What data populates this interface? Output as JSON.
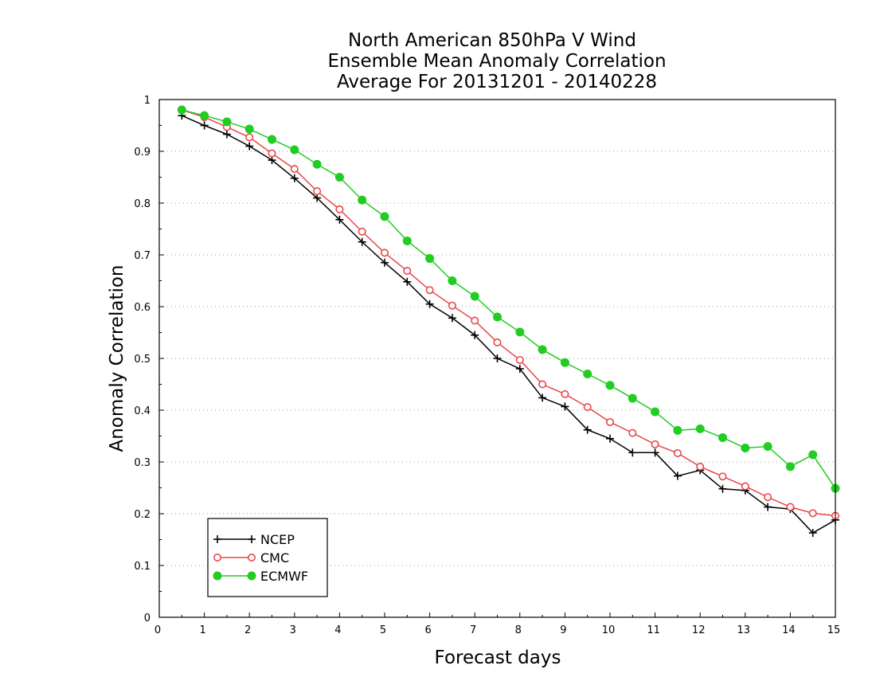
{
  "chart_data": {
    "type": "line",
    "title": [
      "North American 850hPa V Wind",
      "Ensemble Mean Anomaly Correlation",
      "Average For 20131201 - 20140228"
    ],
    "xlabel": "Forecast days",
    "ylabel": "Anomaly Correlation",
    "xlim": [
      0,
      15
    ],
    "ylim": [
      0,
      1
    ],
    "x_ticks": [
      0,
      1,
      2,
      3,
      4,
      5,
      6,
      7,
      8,
      9,
      10,
      11,
      12,
      13,
      14,
      15
    ],
    "y_ticks": [
      0,
      0.1,
      0.2,
      0.3,
      0.4,
      0.5,
      0.6,
      0.7,
      0.8,
      0.9,
      1
    ],
    "y_tick_labels": [
      "0",
      "0.1",
      "0.2",
      "0.3",
      "0.4",
      "0.5",
      "0.6",
      "0.7",
      "0.8",
      "0.9",
      "1"
    ],
    "grid": "horizontal dotted",
    "legend_position": "bottom-left",
    "x": [
      0.5,
      1,
      1.5,
      2,
      2.5,
      3,
      3.5,
      4,
      4.5,
      5,
      5.5,
      6,
      6.5,
      7,
      7.5,
      8,
      8.5,
      9,
      9.5,
      10,
      10.5,
      11,
      11.5,
      12,
      12.5,
      13,
      13.5,
      14,
      14.5,
      15
    ],
    "series": [
      {
        "name": "NCEP",
        "color": "#000000",
        "marker": "plus",
        "values": [
          0.969,
          0.95,
          0.933,
          0.91,
          0.883,
          0.848,
          0.81,
          0.768,
          0.725,
          0.685,
          0.648,
          0.605,
          0.578,
          0.545,
          0.5,
          0.48,
          0.424,
          0.407,
          0.362,
          0.345,
          0.318,
          0.318,
          0.273,
          0.284,
          0.248,
          0.245,
          0.213,
          0.209,
          0.163,
          0.188
        ]
      },
      {
        "name": "CMC",
        "color": "#e8474a",
        "marker": "open-circle",
        "values": [
          0.98,
          0.966,
          0.947,
          0.927,
          0.896,
          0.866,
          0.823,
          0.788,
          0.745,
          0.704,
          0.669,
          0.632,
          0.602,
          0.573,
          0.531,
          0.497,
          0.45,
          0.431,
          0.406,
          0.377,
          0.356,
          0.334,
          0.317,
          0.291,
          0.272,
          0.253,
          0.232,
          0.213,
          0.201,
          0.196
        ]
      },
      {
        "name": "ECMWF",
        "color": "#22cc22",
        "marker": "filled-circle",
        "values": [
          0.98,
          0.969,
          0.957,
          0.943,
          0.923,
          0.903,
          0.875,
          0.85,
          0.806,
          0.774,
          0.727,
          0.693,
          0.65,
          0.62,
          0.58,
          0.551,
          0.517,
          0.492,
          0.47,
          0.448,
          0.423,
          0.397,
          0.361,
          0.364,
          0.347,
          0.327,
          0.33,
          0.291,
          0.314,
          0.249
        ]
      }
    ]
  }
}
